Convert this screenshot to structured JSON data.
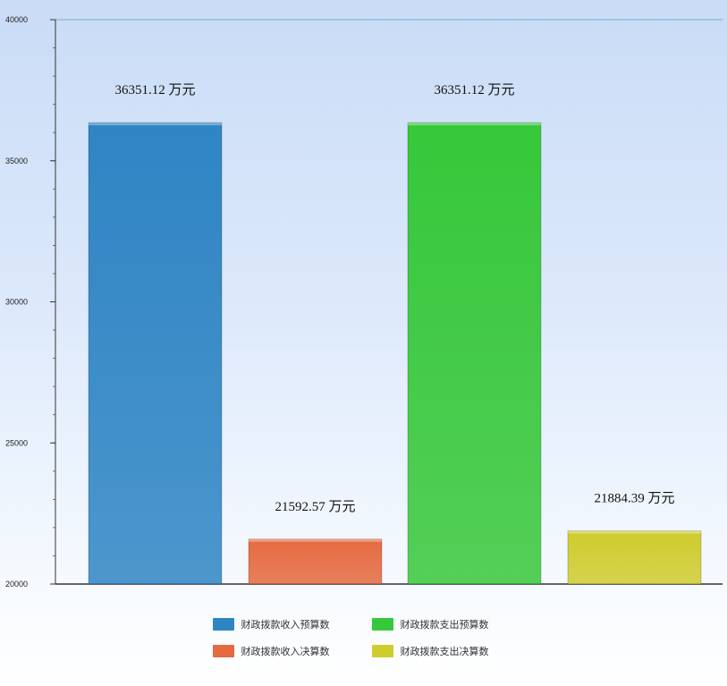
{
  "chart_data": {
    "type": "bar",
    "categories": [
      "财政拨款收入预算数",
      "财政拨款收入决算数",
      "财政拨款支出预算数",
      "财政拨款支出决算数"
    ],
    "values": [
      36351.12,
      21592.57,
      36351.12,
      21884.39
    ],
    "value_labels": [
      "36351.12 万元",
      "21592.57 万元",
      "36351.12 万元",
      "21884.39 万元"
    ],
    "colors": [
      "#2f85c4",
      "#e56a40",
      "#37c83a",
      "#cfcc2e"
    ],
    "ylim": [
      20000,
      40000
    ],
    "yticks": [
      "20000",
      "25000",
      "30000",
      "35000",
      "40000"
    ],
    "grid": false,
    "legend_position": "bottom"
  },
  "legend": [
    {
      "label": "财政拨款收入预算数",
      "color": "#2f85c4"
    },
    {
      "label": "财政拨款支出预算数",
      "color": "#37c83a"
    },
    {
      "label": "财政拨款收入决算数",
      "color": "#e56a40"
    },
    {
      "label": "财政拨款支出决算数",
      "color": "#cfcc2e"
    }
  ]
}
